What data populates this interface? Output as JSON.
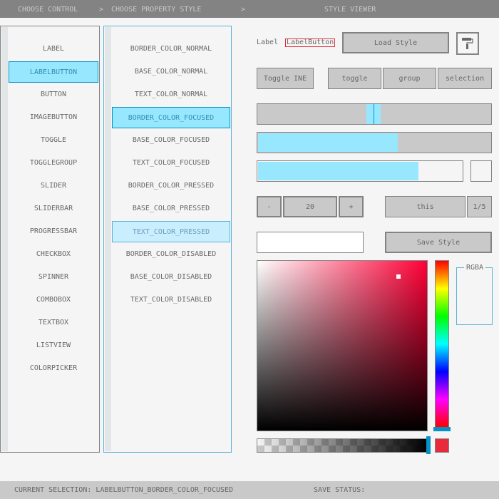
{
  "header": {
    "choose_control": "CHOOSE CONTROL",
    "sep1": ">",
    "choose_property": "CHOOSE PROPERTY STYLE",
    "sep2": ">",
    "style_viewer": "STYLE VIEWER"
  },
  "controls": [
    "LABEL",
    "LABELBUTTON",
    "BUTTON",
    "IMAGEBUTTON",
    "TOGGLE",
    "TOGGLEGROUP",
    "SLIDER",
    "SLIDERBAR",
    "PROGRESSBAR",
    "CHECKBOX",
    "SPINNER",
    "COMBOBOX",
    "TEXTBOX",
    "LISTVIEW",
    "COLORPICKER"
  ],
  "controls_selected": 1,
  "properties": [
    "BORDER_COLOR_NORMAL",
    "BASE_COLOR_NORMAL",
    "TEXT_COLOR_NORMAL",
    "BORDER_COLOR_FOCUSED",
    "BASE_COLOR_FOCUSED",
    "TEXT_COLOR_FOCUSED",
    "BORDER_COLOR_PRESSED",
    "BASE_COLOR_PRESSED",
    "TEXT_COLOR_PRESSED",
    "BORDER_COLOR_DISABLED",
    "BASE_COLOR_DISABLED",
    "TEXT_COLOR_DISABLED"
  ],
  "properties_selected": 3,
  "properties_hovered": 8,
  "viewer": {
    "label": "Label",
    "label_button": "LabelButton",
    "load_style": "Load Style",
    "paint_icon": "paint-roller-icon",
    "toggle": "Toggle INE",
    "toggle_group": [
      "toggle",
      "group",
      "selection"
    ],
    "toggle_group_active": 0,
    "slider_value": 0.5,
    "sliderbar_value": 0.6,
    "progress_value": 0.78,
    "checkbox_checked": false,
    "spinner": {
      "minus": "-",
      "value": "20",
      "plus": "+"
    },
    "combobox": {
      "value": "this",
      "counter": "1/5"
    },
    "textbox_value": "",
    "save_style": "Save Style",
    "colorpicker": {
      "hue": 350,
      "alpha": 1.0
    },
    "rgba_label": "RGBA",
    "color_preview": "#e92a3a"
  },
  "status": {
    "selection": "CURRENT SELECTION: LABELBUTTON_BORDER_COLOR_FOCUSED",
    "save_status": "SAVE STATUS:"
  },
  "colors": {
    "accent": "#97e8ff",
    "accent_border": "#0492c7",
    "header": "#838383"
  }
}
